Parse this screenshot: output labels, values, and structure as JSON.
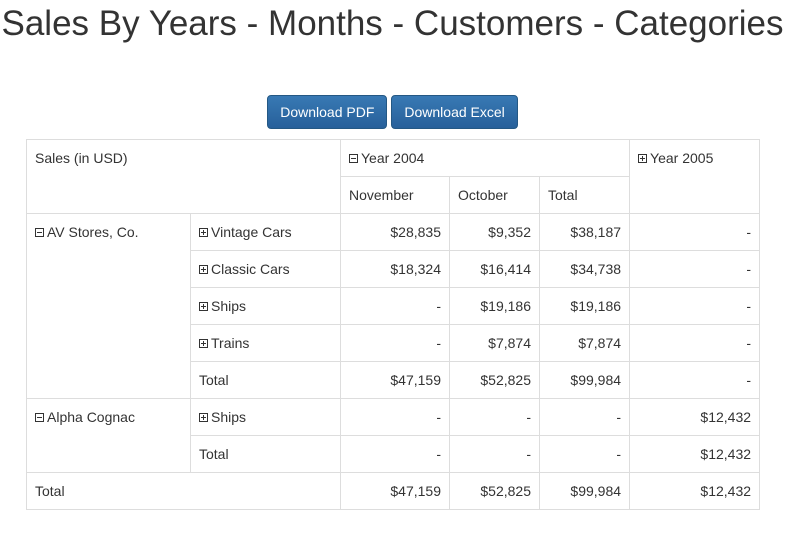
{
  "title": "Sales By Years - Months - Customers - Categories",
  "buttons": {
    "pdf": "Download PDF",
    "excel": "Download Excel"
  },
  "table": {
    "corner_label": "Sales (in USD)",
    "year_2004": "Year 2004",
    "year_2005": "Year 2005",
    "months": [
      "November",
      "October",
      "Total"
    ],
    "customers": [
      {
        "name": "AV Stores, Co.",
        "rows": [
          {
            "category": "Vintage Cars",
            "nov": "$28,835",
            "oct": "$9,352",
            "total": "$38,187",
            "y2005": "-"
          },
          {
            "category": "Classic Cars",
            "nov": "$18,324",
            "oct": "$16,414",
            "total": "$34,738",
            "y2005": "-"
          },
          {
            "category": "Ships",
            "nov": "-",
            "oct": "$19,186",
            "total": "$19,186",
            "y2005": "-"
          },
          {
            "category": "Trains",
            "nov": "-",
            "oct": "$7,874",
            "total": "$7,874",
            "y2005": "-"
          },
          {
            "category": "Total",
            "nov": "$47,159",
            "oct": "$52,825",
            "total": "$99,984",
            "y2005": "-"
          }
        ]
      },
      {
        "name": "Alpha Cognac",
        "rows": [
          {
            "category": "Ships",
            "nov": "-",
            "oct": "-",
            "total": "-",
            "y2005": "$12,432"
          },
          {
            "category": "Total",
            "nov": "-",
            "oct": "-",
            "total": "-",
            "y2005": "$12,432"
          }
        ]
      }
    ],
    "grand_total": {
      "label": "Total",
      "nov": "$47,159",
      "oct": "$52,825",
      "total": "$99,984",
      "y2005": "$12,432"
    }
  }
}
